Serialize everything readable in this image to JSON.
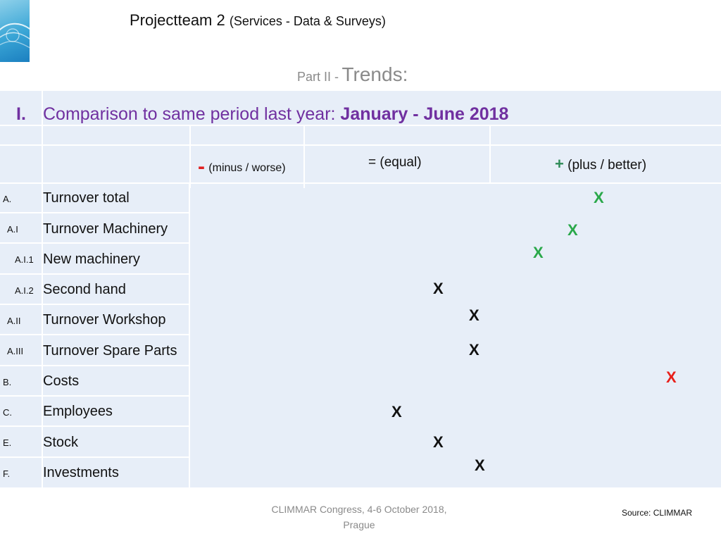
{
  "header": {
    "title": "Projectteam 2",
    "subtitle": "(Services - Data & Surveys)",
    "part_prefix": "Part II -",
    "part_title": "Trends:"
  },
  "section": {
    "roman": "I.",
    "heading": "Comparison to same period last year:",
    "period": "January - June 2018"
  },
  "columns": {
    "minus_symbol": "-",
    "minus_label": "(minus / worse)",
    "equal_label": "= (equal)",
    "plus_symbol": "+",
    "plus_label": "(plus / better)"
  },
  "rows": [
    {
      "code": "A.",
      "label": "Turnover total",
      "mark": "X",
      "mark_color": "#2aa84a"
    },
    {
      "code": "A.I",
      "label": "Turnover Machinery",
      "mark": "X",
      "mark_color": "#2aa84a"
    },
    {
      "code": "A.I.1",
      "label": "New machinery",
      "mark": "X",
      "mark_color": "#2aa84a"
    },
    {
      "code": "A.I.2",
      "label": "Second hand",
      "mark": "X",
      "mark_color": "#111111"
    },
    {
      "code": "A.II",
      "label": "Turnover Workshop",
      "mark": "X",
      "mark_color": "#111111"
    },
    {
      "code": "A.III",
      "label": "Turnover Spare Parts",
      "mark": "X",
      "mark_color": "#111111"
    },
    {
      "code": "B.",
      "label": "Costs",
      "mark": "X",
      "mark_color": "#e8201b"
    },
    {
      "code": "C.",
      "label": "Employees",
      "mark": "X",
      "mark_color": "#111111"
    },
    {
      "code": "E.",
      "label": "Stock",
      "mark": "X",
      "mark_color": "#111111"
    },
    {
      "code": "F.",
      "label": "Investments",
      "mark": "X",
      "mark_color": "#111111"
    }
  ],
  "footer": {
    "line1": "CLIMMAR Congress, 4-6 October 2018,",
    "line2": "Prague",
    "source": "Source: CLIMMAR"
  }
}
